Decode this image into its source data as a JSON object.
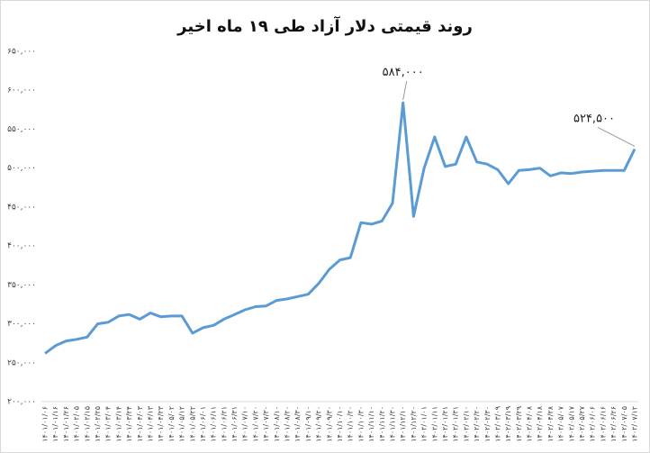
{
  "chart_data": {
    "type": "line",
    "title": "روند قیمتی دلار آزاد طی ۱۹ ماه اخیر",
    "categories": [
      "۱۴۰۱/۰۱/۰۶",
      "۱۴۰۱/۰۱/۱۶",
      "۱۴۰۱/۰۱/۲۶",
      "۱۴۰۱/۰۲/۰۵",
      "۱۴۰۱/۰۲/۱۵",
      "۱۴۰۱/۰۲/۲۵",
      "۱۴۰۱/۰۳/۰۴",
      "۱۴۰۱/۰۳/۱۴",
      "۱۴۰۱/۰۳/۲۴",
      "۱۴۰۱/۰۴/۰۳",
      "۱۴۰۱/۰۴/۱۳",
      "۱۴۰۱/۰۴/۲۳",
      "۱۴۰۱/۰۵/۰۲",
      "۱۴۰۱/۰۵/۱۲",
      "۱۴۰۱/۰۵/۲۲",
      "۱۴۰۱/۰۶/۰۱",
      "۱۴۰۱/۰۶/۱۱",
      "۱۴۰۱/۰۶/۲۱",
      "۱۴۰۱/۰۶/۳۱",
      "۱۴۰۱/۰۷/۱۰",
      "۱۴۰۱/۰۷/۲۰",
      "۱۴۰۱/۰۷/۳۰",
      "۱۴۰۱/۰۸/۱۰",
      "۱۴۰۱/۰۸/۲۰",
      "۱۴۰۱/۰۸/۳۰",
      "۱۴۰۱/۰۹/۱۰",
      "۱۴۰۱/۰۹/۲۰",
      "۱۴۰۱/۰۹/۳۰",
      "۱۴۰۱/۱۰/۱۰",
      "۱۴۰۱/۱۰/۲۰",
      "۱۴۰۱/۱۰/۳۰",
      "۱۴۰۱/۱۱/۱۰",
      "۱۴۰۱/۱۱/۲۰",
      "۱۴۰۱/۱۱/۳۰",
      "۱۴۰۱/۱۲/۱۰",
      "۱۴۰۱/۱۲/۲۰",
      "۱۴۰۲/۰۱/۰۱",
      "۱۴۰۲/۰۱/۱۱",
      "۱۴۰۲/۰۱/۲۱",
      "۱۴۰۲/۰۱/۳۱",
      "۱۴۰۲/۰۲/۱۰",
      "۱۴۰۲/۰۲/۲۰",
      "۱۴۰۲/۰۲/۳۰",
      "۱۴۰۲/۰۳/۰۹",
      "۱۴۰۲/۰۳/۱۹",
      "۱۴۰۲/۰۳/۲۹",
      "۱۴۰۲/۰۴/۰۸",
      "۱۴۰۲/۰۴/۱۸",
      "۱۴۰۲/۰۴/۲۸",
      "۱۴۰۲/۰۵/۰۷",
      "۱۴۰۲/۰۵/۱۷",
      "۱۴۰۲/۰۵/۲۷",
      "۱۴۰۲/۰۶/۰۶",
      "۱۴۰۲/۰۶/۱۶",
      "۱۴۰۲/۰۶/۲۶",
      "۱۴۰۲/۰۷/۰۵",
      "۱۴۰۲/۰۷/۱۲"
    ],
    "values": [
      262000,
      272000,
      278000,
      280000,
      283000,
      300000,
      302000,
      310000,
      312000,
      306000,
      314000,
      309000,
      310000,
      310000,
      288000,
      295000,
      298000,
      306000,
      312000,
      318000,
      322000,
      323000,
      330000,
      332000,
      335000,
      338000,
      352000,
      370000,
      382000,
      385000,
      430000,
      428000,
      432000,
      455000,
      584000,
      438000,
      500000,
      540000,
      502000,
      505000,
      540000,
      508000,
      505000,
      498000,
      480000,
      497000,
      498000,
      500000,
      490000,
      494000,
      493000,
      495000,
      496000,
      497000,
      497000,
      497000,
      524500
    ],
    "value_labels": [
      null,
      null,
      null,
      null,
      null,
      null,
      null,
      null,
      null,
      null,
      null,
      null,
      null,
      null,
      null,
      null,
      null,
      null,
      null,
      null,
      null,
      null,
      null,
      null,
      null,
      null,
      null,
      null,
      null,
      null,
      null,
      null,
      null,
      null,
      "۵۸۴,۰۰۰",
      null,
      null,
      null,
      null,
      null,
      null,
      null,
      null,
      null,
      null,
      null,
      null,
      null,
      null,
      null,
      null,
      null,
      null,
      null,
      null,
      null,
      "۵۲۴,۵۰۰"
    ],
    "color": "#5b9bd5",
    "ylim": [
      200000,
      650000
    ],
    "yticks": [
      {
        "value": 200000,
        "label": "۲۰۰,۰۰۰"
      },
      {
        "value": 250000,
        "label": "۲۵۰,۰۰۰"
      },
      {
        "value": 300000,
        "label": "۳۰۰,۰۰۰"
      },
      {
        "value": 350000,
        "label": "۳۵۰,۰۰۰"
      },
      {
        "value": 400000,
        "label": "۴۰۰,۰۰۰"
      },
      {
        "value": 450000,
        "label": "۴۵۰,۰۰۰"
      },
      {
        "value": 500000,
        "label": "۵۰۰,۰۰۰"
      },
      {
        "value": 550000,
        "label": "۵۵۰,۰۰۰"
      },
      {
        "value": 600000,
        "label": "۶۰۰,۰۰۰"
      },
      {
        "value": 650000,
        "label": "۶۵۰,۰۰۰"
      }
    ],
    "grid": false
  }
}
